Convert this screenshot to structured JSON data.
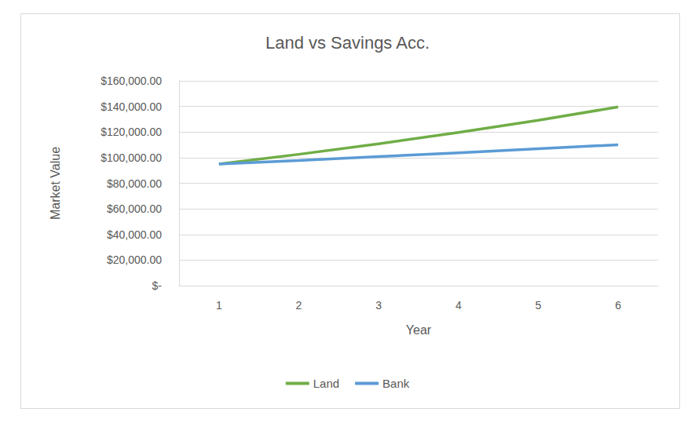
{
  "chart_data": {
    "type": "line",
    "title": "Land vs Savings Acc.",
    "x_label": "Year",
    "y_label": "Market Value",
    "categories": [
      "1",
      "2",
      "3",
      "4",
      "5",
      "6"
    ],
    "series": [
      {
        "name": "Land",
        "color": "#70ad47",
        "values": [
          95000,
          102600,
          110800,
          119700,
          129200,
          139600
        ]
      },
      {
        "name": "Bank",
        "color": "#5b9bd5",
        "values": [
          95000,
          97850,
          100800,
          103800,
          106900,
          110100
        ]
      }
    ],
    "ylim": [
      0,
      160000
    ],
    "yticks": [
      {
        "value": 0,
        "label": "$-"
      },
      {
        "value": 20000,
        "label": "$20,000.00"
      },
      {
        "value": 40000,
        "label": "$40,000.00"
      },
      {
        "value": 60000,
        "label": "$60,000.00"
      },
      {
        "value": 80000,
        "label": "$80,000.00"
      },
      {
        "value": 100000,
        "label": "$100,000.00"
      },
      {
        "value": 120000,
        "label": "$120,000.00"
      },
      {
        "value": 140000,
        "label": "$140,000.00"
      },
      {
        "value": 160000,
        "label": "$160,000.00"
      }
    ],
    "grid": true,
    "legend": "bottom"
  }
}
